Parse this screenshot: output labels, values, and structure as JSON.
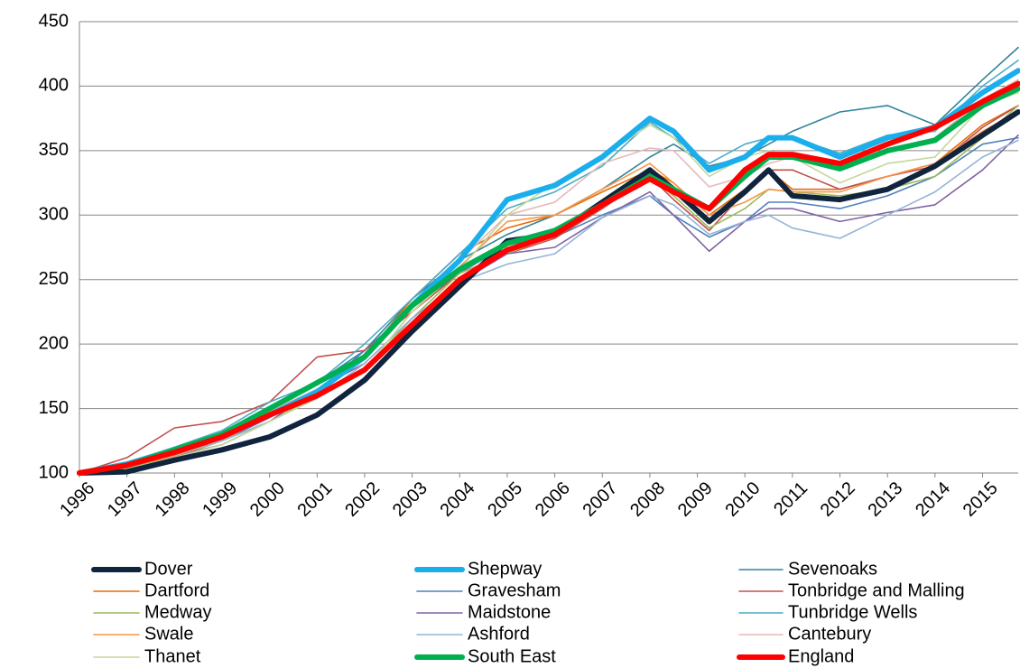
{
  "chart_data": {
    "type": "line",
    "x": [
      1996,
      1997,
      1998,
      1999,
      2000,
      2001,
      2002,
      2003,
      2004,
      2005,
      2006,
      2007,
      2008,
      2008.5,
      2009.25,
      2010,
      2010.5,
      2011,
      2012,
      2013,
      2014,
      2015,
      2015.75
    ],
    "xlim": [
      1996,
      2015.75
    ],
    "xticks": [
      1996,
      1997,
      1998,
      1999,
      2000,
      2001,
      2002,
      2003,
      2004,
      2005,
      2006,
      2007,
      2008,
      2009,
      2010,
      2011,
      2012,
      2013,
      2014,
      2015
    ],
    "ylim": [
      100,
      450
    ],
    "yticks": [
      100,
      150,
      200,
      250,
      300,
      350,
      400,
      450
    ],
    "grid": true,
    "legend": "bottom",
    "series": [
      {
        "name": "Dover",
        "color": "#10243e",
        "width": 6,
        "values": [
          100,
          101,
          110,
          118,
          128,
          145,
          172,
          210,
          245,
          280,
          285,
          310,
          335,
          320,
          295,
          318,
          335,
          315,
          312,
          320,
          338,
          362,
          380
        ]
      },
      {
        "name": "Shepway",
        "color": "#1aafec",
        "width": 6,
        "values": [
          100,
          107,
          118,
          128,
          145,
          163,
          190,
          230,
          265,
          312,
          323,
          345,
          375,
          365,
          335,
          345,
          360,
          360,
          345,
          360,
          368,
          395,
          412
        ]
      },
      {
        "name": "Sevenoaks",
        "color": "#31849b",
        "width": 1.6,
        "values": [
          100,
          108,
          118,
          130,
          150,
          170,
          195,
          235,
          265,
          285,
          300,
          320,
          345,
          355,
          338,
          345,
          355,
          365,
          380,
          385,
          370,
          405,
          430
        ]
      },
      {
        "name": "Dartford",
        "color": "#e46c0a",
        "width": 1.6,
        "values": [
          100,
          106,
          117,
          128,
          150,
          170,
          190,
          235,
          270,
          290,
          300,
          318,
          335,
          325,
          300,
          320,
          335,
          320,
          320,
          330,
          340,
          370,
          385
        ]
      },
      {
        "name": "Gravesham",
        "color": "#4f81bd",
        "width": 1.6,
        "values": [
          100,
          105,
          113,
          125,
          143,
          163,
          195,
          228,
          255,
          277,
          283,
          300,
          315,
          300,
          283,
          295,
          310,
          310,
          305,
          315,
          330,
          355,
          360
        ]
      },
      {
        "name": "Tonbridge and Malling",
        "color": "#c0504d",
        "width": 1.6,
        "values": [
          100,
          112,
          135,
          140,
          155,
          190,
          195,
          225,
          255,
          270,
          282,
          305,
          330,
          312,
          288,
          318,
          335,
          335,
          320,
          330,
          338,
          368,
          385
        ]
      },
      {
        "name": "Medway",
        "color": "#9bbb59",
        "width": 1.6,
        "values": [
          100,
          104,
          112,
          125,
          140,
          160,
          180,
          220,
          255,
          270,
          285,
          308,
          330,
          315,
          290,
          305,
          320,
          318,
          315,
          320,
          330,
          360,
          385
        ]
      },
      {
        "name": "Maidstone",
        "color": "#8064a2",
        "width": 1.6,
        "values": [
          100,
          105,
          113,
          122,
          140,
          165,
          185,
          220,
          248,
          270,
          275,
          298,
          318,
          300,
          272,
          295,
          305,
          305,
          295,
          302,
          308,
          335,
          362
        ]
      },
      {
        "name": "Tunbridge Wells",
        "color": "#4bacc6",
        "width": 1.6,
        "values": [
          100,
          108,
          120,
          133,
          155,
          170,
          200,
          235,
          270,
          305,
          318,
          338,
          372,
          360,
          340,
          355,
          360,
          360,
          348,
          362,
          365,
          400,
          420
        ]
      },
      {
        "name": "Swale",
        "color": "#f79646",
        "width": 1.6,
        "values": [
          100,
          105,
          113,
          125,
          145,
          162,
          180,
          225,
          260,
          295,
          300,
          320,
          340,
          325,
          300,
          310,
          320,
          318,
          318,
          330,
          340,
          365,
          380
        ]
      },
      {
        "name": "Ashford",
        "color": "#95b3d7",
        "width": 1.6,
        "values": [
          100,
          105,
          114,
          125,
          140,
          158,
          185,
          220,
          248,
          262,
          270,
          298,
          315,
          308,
          285,
          295,
          300,
          290,
          282,
          300,
          318,
          345,
          358
        ]
      },
      {
        "name": "Cantebury",
        "color": "#e6b9b8",
        "width": 1.6,
        "values": [
          100,
          106,
          118,
          128,
          148,
          165,
          190,
          230,
          265,
          300,
          310,
          340,
          352,
          350,
          322,
          330,
          340,
          345,
          335,
          350,
          360,
          390,
          405
        ]
      },
      {
        "name": "Thanet",
        "color": "#c4d79b",
        "width": 1.6,
        "values": [
          100,
          103,
          112,
          122,
          140,
          158,
          180,
          225,
          258,
          300,
          325,
          345,
          370,
          360,
          330,
          345,
          350,
          345,
          325,
          340,
          345,
          385,
          395
        ]
      },
      {
        "name": "South East",
        "color": "#00b050",
        "width": 6,
        "values": [
          100,
          106,
          118,
          130,
          150,
          170,
          190,
          230,
          258,
          278,
          288,
          308,
          330,
          320,
          305,
          330,
          345,
          345,
          336,
          350,
          358,
          385,
          398
        ]
      },
      {
        "name": "England",
        "color": "#ff0000",
        "width": 6,
        "values": [
          100,
          106,
          116,
          128,
          145,
          160,
          180,
          215,
          250,
          273,
          285,
          308,
          328,
          318,
          305,
          335,
          347,
          347,
          340,
          355,
          368,
          388,
          402
        ]
      }
    ]
  }
}
